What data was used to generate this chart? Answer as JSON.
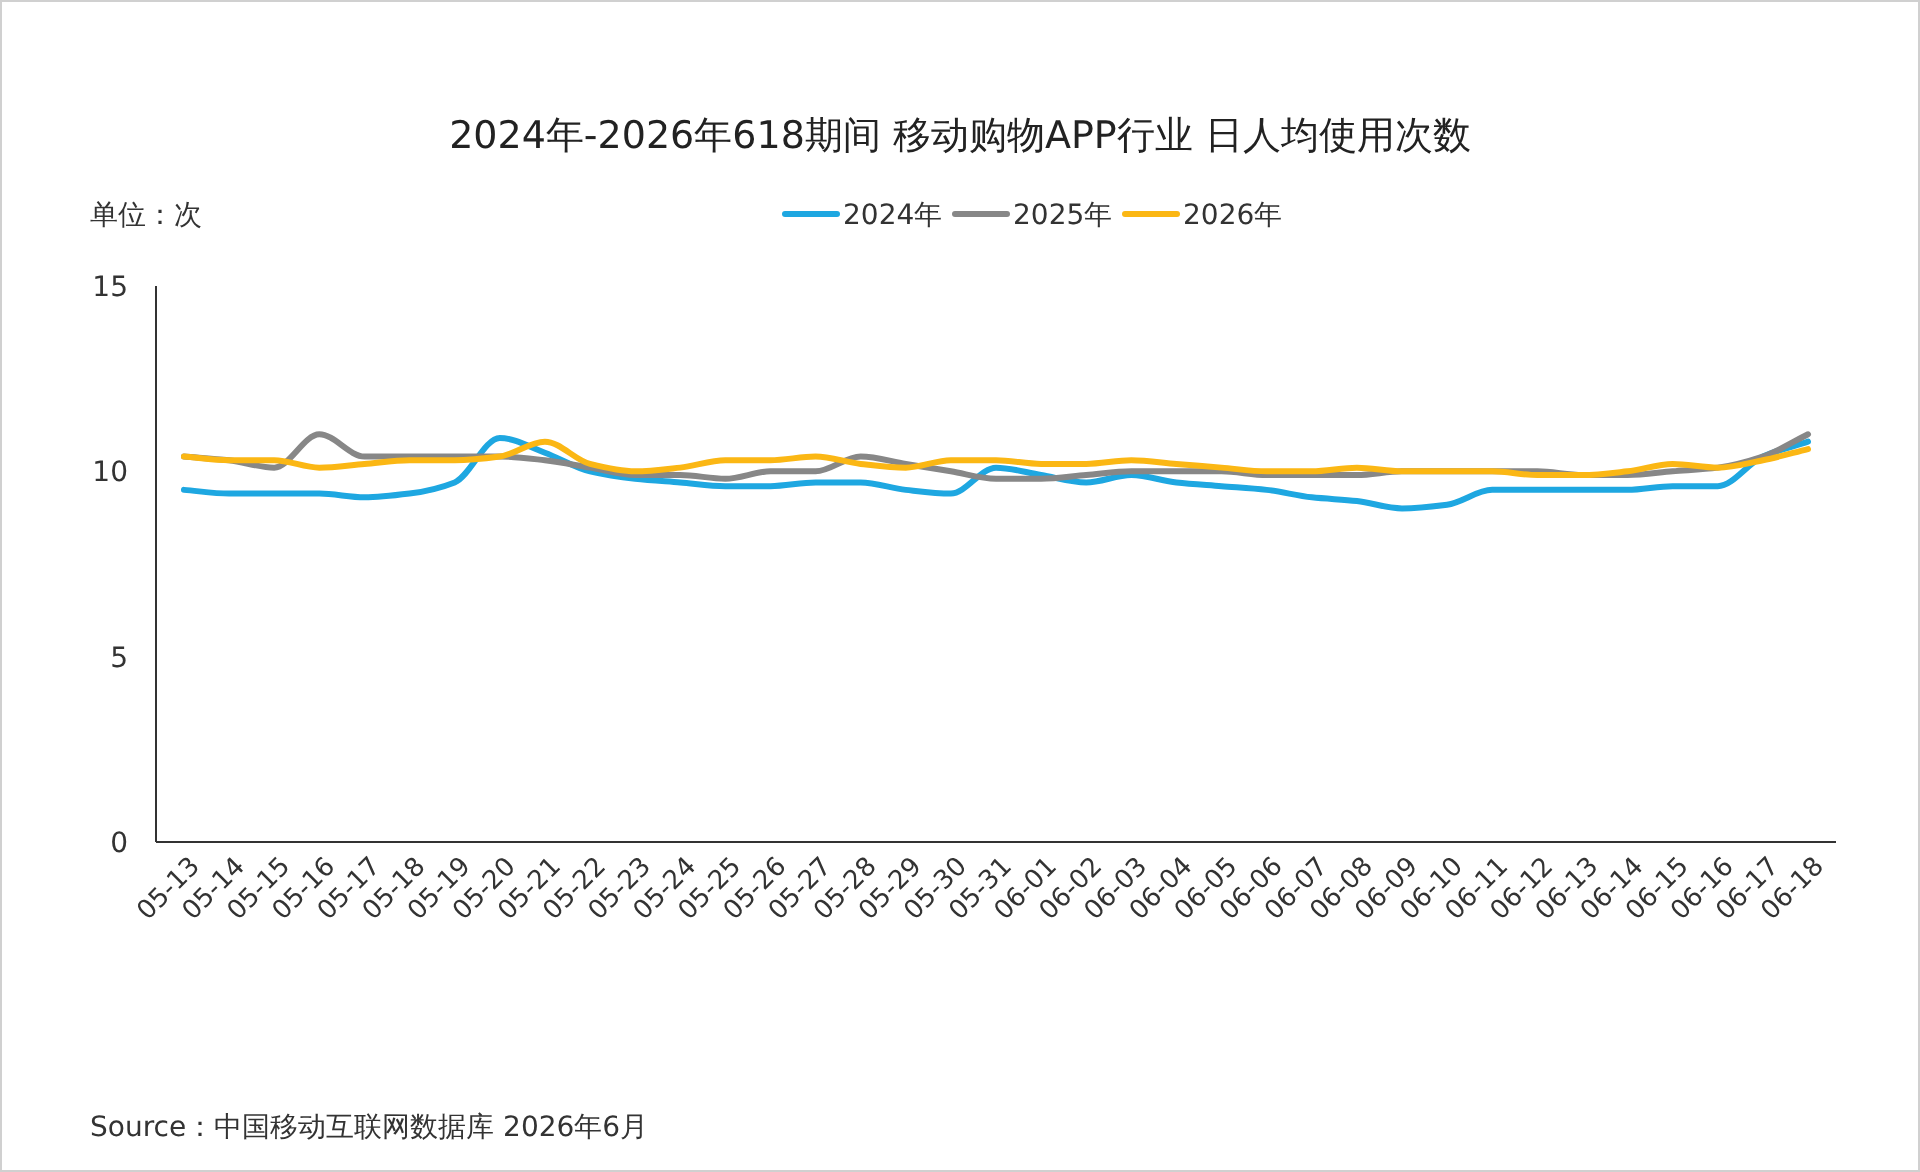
{
  "chart_data": {
    "type": "line",
    "title": "2024年-2026年618期间 移动购物APP行业 日人均使用次数",
    "ylabel": "单位：次",
    "categories": [
      "05-13",
      "05-14",
      "05-15",
      "05-16",
      "05-17",
      "05-18",
      "05-19",
      "05-20",
      "05-21",
      "05-22",
      "05-23",
      "05-24",
      "05-25",
      "05-26",
      "05-27",
      "05-28",
      "05-29",
      "05-30",
      "05-31",
      "06-01",
      "06-02",
      "06-03",
      "06-04",
      "06-05",
      "06-06",
      "06-07",
      "06-08",
      "06-09",
      "06-10",
      "06-11",
      "06-12",
      "06-13",
      "06-14",
      "06-15",
      "06-16",
      "06-17",
      "06-18"
    ],
    "series": [
      {
        "name": "2024年",
        "color": "#1ea7e1",
        "values": [
          9.5,
          9.4,
          9.4,
          9.4,
          9.3,
          9.4,
          9.7,
          10.9,
          10.5,
          10.0,
          9.8,
          9.7,
          9.6,
          9.6,
          9.7,
          9.7,
          9.5,
          9.4,
          10.1,
          9.9,
          9.7,
          9.9,
          9.7,
          9.6,
          9.5,
          9.3,
          9.2,
          9.0,
          9.1,
          9.5,
          9.5,
          9.5,
          9.5,
          9.6,
          9.6,
          10.4,
          10.8
        ]
      },
      {
        "name": "2025年",
        "color": "#878787",
        "values": [
          10.4,
          10.3,
          10.1,
          11.0,
          10.4,
          10.4,
          10.4,
          10.4,
          10.3,
          10.1,
          9.9,
          9.9,
          9.8,
          10.0,
          10.0,
          10.4,
          10.2,
          10.0,
          9.8,
          9.8,
          9.9,
          10.0,
          10.0,
          10.0,
          9.9,
          9.9,
          9.9,
          10.0,
          10.0,
          10.0,
          10.0,
          9.9,
          9.9,
          10.0,
          10.1,
          10.4,
          11.0
        ]
      },
      {
        "name": "2026年",
        "color": "#fbb714",
        "values": [
          10.4,
          10.3,
          10.3,
          10.1,
          10.2,
          10.3,
          10.3,
          10.4,
          10.8,
          10.2,
          10.0,
          10.1,
          10.3,
          10.3,
          10.4,
          10.2,
          10.1,
          10.3,
          10.3,
          10.2,
          10.2,
          10.3,
          10.2,
          10.1,
          10.0,
          10.0,
          10.1,
          10.0,
          10.0,
          10.0,
          9.9,
          9.9,
          10.0,
          10.2,
          10.1,
          10.3,
          10.6
        ]
      }
    ],
    "ylim": [
      0,
      15
    ],
    "yticks": [
      0,
      5,
      10,
      15
    ],
    "grid": false,
    "legend": "top",
    "marker": "none",
    "line_style": "solid",
    "annotations": [
      "Source：中国移动互联网数据库 2026年6月"
    ]
  }
}
